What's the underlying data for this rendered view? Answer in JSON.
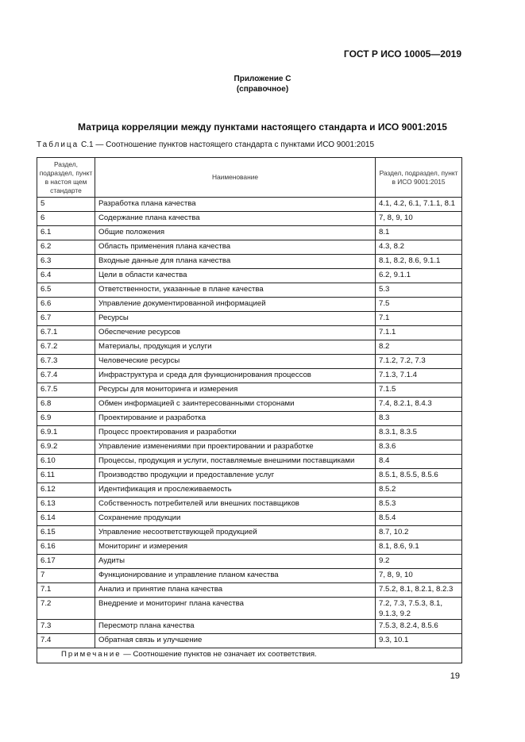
{
  "header": {
    "standard": "ГОСТ Р ИСО 10005—2019"
  },
  "appendix": {
    "title": "Приложение С",
    "subtitle": "(справочное)"
  },
  "heading": "Матрица корреляции между пунктами настоящего стандарта и ИСО 9001:2015",
  "caption": {
    "prefix": "Таблица",
    "text": "С.1 — Соотношение пунктов настоящего стандарта с пунктами ИСО 9001:2015"
  },
  "table": {
    "headers": [
      "Раздел, подраздел, пункт в настоя щем стандарте",
      "Наименование",
      "Раздел, подраздел, пункт в ИСО 9001:2015"
    ],
    "rows": [
      [
        "5",
        "Разработка плана качества",
        "4.1, 4.2, 6.1, 7.1.1, 8.1"
      ],
      [
        "6",
        "Содержание плана качества",
        "7, 8, 9, 10"
      ],
      [
        "6.1",
        "Общие положения",
        "8.1"
      ],
      [
        "6.2",
        "Область применения плана качества",
        "4.3, 8.2"
      ],
      [
        "6.3",
        "Входные данные для плана качества",
        "8.1, 8.2, 8.6, 9.1.1"
      ],
      [
        "6.4",
        "Цели в области качества",
        "6.2, 9.1.1"
      ],
      [
        "6.5",
        "Ответственности, указанные в плане качества",
        "5.3"
      ],
      [
        "6.6",
        "Управление документированной информацией",
        "7.5"
      ],
      [
        "6.7",
        "Ресурсы",
        "7.1"
      ],
      [
        "6.7.1",
        "Обеспечение ресурсов",
        "7.1.1"
      ],
      [
        "6.7.2",
        "Материалы, продукция и услуги",
        "8.2"
      ],
      [
        "6.7.3",
        "Человеческие ресурсы",
        "7.1.2, 7.2, 7.3"
      ],
      [
        "6.7.4",
        "Инфраструктура и среда для функционирования процессов",
        "7.1.3, 7.1.4"
      ],
      [
        "6.7.5",
        "Ресурсы для мониторинга и измерения",
        "7.1.5"
      ],
      [
        "6.8",
        "Обмен информацией с заинтересованными сторонами",
        "7.4, 8.2.1, 8.4.3"
      ],
      [
        "6.9",
        "Проектирование и разработка",
        "8.3"
      ],
      [
        "6.9.1",
        "Процесс проектирования и разработки",
        "8.3.1, 8.3.5"
      ],
      [
        "6.9.2",
        "Управление изменениями при проектировании и разработке",
        "8.3.6"
      ],
      [
        "6.10",
        "Процессы, продукция и услуги, поставляемые внешними поставщиками",
        "8.4"
      ],
      [
        "6.11",
        "Производство продукции и предоставление услуг",
        "8.5.1, 8.5.5, 8.5.6"
      ],
      [
        "6.12",
        "Идентификация и прослеживаемость",
        "8.5.2"
      ],
      [
        "6.13",
        "Собственность потребителей или внешних поставщиков",
        "8.5.3"
      ],
      [
        "6.14",
        "Сохранение продукции",
        "8.5.4"
      ],
      [
        "6.15",
        "Управление несоответствующей продукцией",
        "8.7, 10.2"
      ],
      [
        "6.16",
        "Мониторинг и измерения",
        "8.1, 8.6, 9.1"
      ],
      [
        "6.17",
        "Аудиты",
        "9.2"
      ],
      [
        "7",
        "Функционирование и управление планом качества",
        "7, 8, 9, 10"
      ],
      [
        "7.1",
        "Анализ и принятие плана качества",
        "7.5.2, 8.1, 8.2.1, 8.2.3"
      ],
      [
        "7.2",
        "Внедрение и мониторинг плана качества",
        "7.2, 7.3, 7.5.3, 8.1, 9.1.3, 9.2"
      ],
      [
        "7.3",
        "Пересмотр плана качества",
        "7.5.3, 8.2.4, 8.5.6"
      ],
      [
        "7.4",
        "Обратная связь и улучшение",
        "9.3, 10.1"
      ]
    ],
    "note": {
      "prefix": "Примечание",
      "text": " — Соотношение пунктов не означает их соответствия."
    }
  },
  "page_number": "19"
}
